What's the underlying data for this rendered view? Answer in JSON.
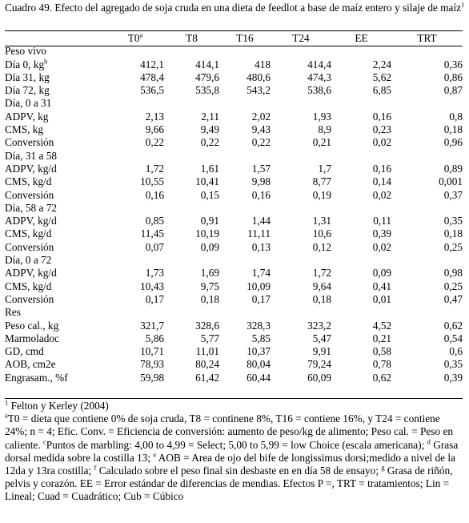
{
  "caption": {
    "text": "Cuadro 49. Efecto del agregado de soja cruda en una dieta de feedlot a base de maíz entero y silaje de maíz",
    "sup": "1"
  },
  "header": {
    "col0": "",
    "t0": "T0",
    "t0_sup": "a",
    "t8": "T8",
    "t16": "T16",
    "t24": "T24",
    "ee": "EE",
    "trt": "TRT"
  },
  "rows": [
    {
      "type": "group",
      "label": "Peso vivo"
    },
    {
      "type": "data",
      "label": "Día 0, kg",
      "sup": "b",
      "v": [
        "412,1",
        "414,1",
        "418",
        "414,4",
        "2,24",
        "0,36"
      ]
    },
    {
      "type": "data",
      "label": "Día 31, kg",
      "v": [
        "478,4",
        "479,6",
        "480,6",
        "474,3",
        "5,62",
        "0,86"
      ]
    },
    {
      "type": "data",
      "label": "Día 72, kg",
      "v": [
        "536,5",
        "535,8",
        "543,2",
        "538,6",
        "6,85",
        "0,87"
      ]
    },
    {
      "type": "group",
      "label": "Día, 0 a 31"
    },
    {
      "type": "data",
      "label": "ADPV, kg",
      "v": [
        "2,13",
        "2,11",
        "2,02",
        "1,93",
        "0,16",
        "0,8"
      ]
    },
    {
      "type": "data",
      "label": "CMS, kg",
      "v": [
        "9,66",
        "9,49",
        "9,43",
        "8,9",
        "0,23",
        "0,18"
      ]
    },
    {
      "type": "data",
      "label": "Conversión",
      "v": [
        "0,22",
        "0,22",
        "0,22",
        "0,21",
        "0,02",
        "0,96"
      ]
    },
    {
      "type": "group",
      "label": "Día, 31 a 58"
    },
    {
      "type": "data",
      "label": "ADPV, kg/d",
      "v": [
        "1,72",
        "1,61",
        "1,57",
        "1,7",
        "0,16",
        "0,89"
      ]
    },
    {
      "type": "data",
      "label": "CMS, kg/d",
      "v": [
        "10,55",
        "10,41",
        "9,98",
        "8,77",
        "0,14",
        "0,001"
      ]
    },
    {
      "type": "data",
      "label": "Conversión",
      "v": [
        "0,16",
        "0,15",
        "0,16",
        "0,19",
        "0,02",
        "0,37"
      ]
    },
    {
      "type": "group",
      "label": "Día, 58 a 72"
    },
    {
      "type": "data",
      "label": "ADPV, kg/d",
      "v": [
        "0,85",
        "0,91",
        "1,44",
        "1,31",
        "0,11",
        "0,35"
      ]
    },
    {
      "type": "data",
      "label": "CMS, kg/d",
      "v": [
        "11,45",
        "10,19",
        "11,11",
        "10,6",
        "0,39",
        "0,18"
      ]
    },
    {
      "type": "data",
      "label": "Conversión",
      "v": [
        "0,07",
        "0,09",
        "0,13",
        "0,12",
        "0,02",
        "0,25"
      ]
    },
    {
      "type": "group",
      "label": "Día, 0 a 72"
    },
    {
      "type": "data",
      "label": "ADPV, kg/d",
      "v": [
        "1,73",
        "1,69",
        "1,74",
        "1,72",
        "0,09",
        "0,98"
      ]
    },
    {
      "type": "data",
      "label": "CMS, kg/d",
      "v": [
        "10,43",
        "9,75",
        "10,09",
        "9,64",
        "0,41",
        "0,25"
      ]
    },
    {
      "type": "data",
      "label": "Conversión",
      "v": [
        "0,17",
        "0,18",
        "0,17",
        "0,18",
        "0,01",
        "0,47"
      ]
    },
    {
      "type": "group",
      "label": "Res"
    },
    {
      "type": "data",
      "label": "Peso cal., kg",
      "v": [
        "321,7",
        "328,6",
        "328,3",
        "323,2",
        "4,52",
        "0,62"
      ]
    },
    {
      "type": "data",
      "label": "Marmoladoc",
      "v": [
        "5,86",
        "5,77",
        "5,85",
        "5,47",
        "0,21",
        "0,54"
      ]
    },
    {
      "type": "data",
      "label": "GD, cmd",
      "v": [
        "10,71",
        "11,01",
        "10,37",
        "9,91",
        "0,58",
        "0,6"
      ]
    },
    {
      "type": "data",
      "label": "AOB, cm2e",
      "v": [
        "78,93",
        "80,24",
        "80,04",
        "79,24",
        "0,78",
        "0,35"
      ]
    },
    {
      "type": "data",
      "label": "Engrasam., %f",
      "v": [
        "59,98",
        "61,42",
        "60,44",
        "60,09",
        "0,62",
        "0,39"
      ]
    }
  ],
  "footnotes": {
    "f1_sup": "1",
    "f1": " Felton y Kerley (2004)",
    "fa_sup": "a",
    "fa_text": "T0 = dieta que contiene 0% de soja cruda, T8 = continene  8%, T16 = contiene 16%, y T24 = contiene 24%; n = 4; Efic. Conv. = Eficiencia de conversión: aumento de peso/kg de alimento; Peso cal. = Peso en caliente. ",
    "fc_sup": "c",
    "fc_text": "Puntos de marbling: 4,00 to 4,99 = Select; 5,00 to 5,99 = low Choice (escala americana); ",
    "fd_sup": "d",
    "fd_text": "  Grasa dorsal medida sobre la costilla 13; ",
    "fe_sup": "e",
    "fe_text": " AOB = Area de ojo del bife de  longissimus dorsi;medido a nivel de la 12da y 13ra costilla; ",
    "ff_sup": "f",
    "ff_text": " Calculado sobre el peso final sin desbaste en en día 58 de ensayo; ",
    "fg_sup": "g",
    "fg_text": " Grasa de riñón, pelvis y corazón.  EE = Error estándar de diferencias de mendias.  Efectos P =, TRT = tratamientos; Lin = Lineal; Cuad = Cuadrático; Cub = Cúbico"
  }
}
